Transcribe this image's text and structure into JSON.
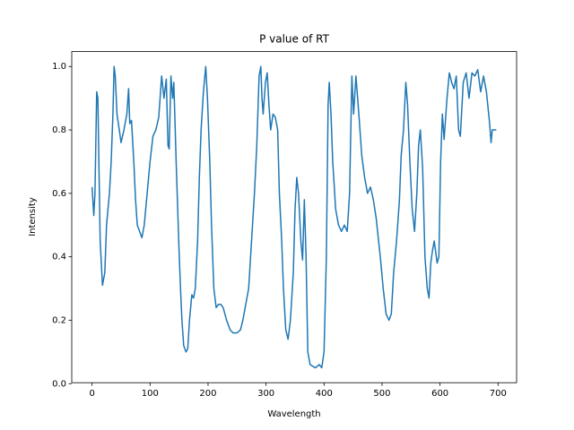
{
  "chart_data": {
    "type": "line",
    "title": "P value of RT",
    "x_label": "Wavelength",
    "y_label": "Intensity",
    "series": [
      {
        "color": "#1f77b4",
        "x": [
          0,
          3,
          5,
          8,
          10,
          14,
          18,
          22,
          25,
          30,
          33,
          36,
          38,
          40,
          43,
          47,
          50,
          55,
          60,
          63,
          65,
          68,
          72,
          75,
          78,
          82,
          86,
          90,
          95,
          100,
          105,
          110,
          115,
          120,
          124,
          128,
          131,
          133,
          136,
          139,
          141,
          145,
          150,
          153,
          155,
          158,
          162,
          165,
          168,
          172,
          175,
          178,
          182,
          185,
          188,
          192,
          196,
          199,
          203,
          206,
          210,
          214,
          218,
          222,
          226,
          232,
          238,
          243,
          250,
          256,
          260,
          265,
          270,
          275,
          280,
          284,
          288,
          291,
          293,
          295,
          299,
          302,
          305,
          308,
          312,
          316,
          320,
          323,
          327,
          330,
          334,
          338,
          342,
          347,
          350,
          353,
          356,
          360,
          363,
          366,
          369,
          372,
          376,
          385,
          392,
          396,
          400,
          404,
          407,
          409,
          412,
          415,
          420,
          425,
          430,
          435,
          440,
          444,
          448,
          451,
          455,
          460,
          465,
          470,
          475,
          480,
          485,
          490,
          497,
          502,
          507,
          512,
          516,
          520,
          525,
          530,
          533,
          537,
          541,
          544,
          548,
          552,
          556,
          560,
          563,
          566,
          570,
          574,
          578,
          581,
          584,
          587,
          590,
          595,
          598,
          601,
          604,
          607,
          612,
          616,
          620,
          624,
          628,
          632,
          635,
          640,
          645,
          650,
          655,
          660,
          665,
          670,
          675,
          680,
          685,
          688,
          690,
          697
        ],
        "values": [
          0.62,
          0.53,
          0.6,
          0.92,
          0.9,
          0.45,
          0.31,
          0.35,
          0.5,
          0.6,
          0.7,
          0.85,
          1.0,
          0.97,
          0.85,
          0.8,
          0.76,
          0.8,
          0.85,
          0.93,
          0.82,
          0.83,
          0.7,
          0.58,
          0.5,
          0.48,
          0.46,
          0.5,
          0.6,
          0.7,
          0.78,
          0.8,
          0.84,
          0.97,
          0.9,
          0.96,
          0.75,
          0.74,
          0.97,
          0.9,
          0.95,
          0.7,
          0.42,
          0.28,
          0.2,
          0.12,
          0.1,
          0.11,
          0.2,
          0.28,
          0.27,
          0.3,
          0.45,
          0.65,
          0.8,
          0.92,
          1.0,
          0.9,
          0.7,
          0.5,
          0.3,
          0.24,
          0.25,
          0.25,
          0.24,
          0.2,
          0.17,
          0.16,
          0.16,
          0.17,
          0.2,
          0.25,
          0.3,
          0.45,
          0.6,
          0.75,
          0.97,
          1.0,
          0.9,
          0.85,
          0.95,
          0.98,
          0.88,
          0.8,
          0.85,
          0.84,
          0.8,
          0.6,
          0.45,
          0.3,
          0.17,
          0.14,
          0.2,
          0.35,
          0.55,
          0.65,
          0.6,
          0.45,
          0.39,
          0.58,
          0.4,
          0.1,
          0.06,
          0.05,
          0.06,
          0.05,
          0.1,
          0.4,
          0.88,
          0.95,
          0.85,
          0.7,
          0.55,
          0.5,
          0.48,
          0.5,
          0.48,
          0.6,
          0.97,
          0.85,
          0.97,
          0.85,
          0.72,
          0.65,
          0.6,
          0.62,
          0.58,
          0.52,
          0.4,
          0.3,
          0.22,
          0.2,
          0.22,
          0.35,
          0.45,
          0.58,
          0.72,
          0.8,
          0.95,
          0.88,
          0.7,
          0.55,
          0.48,
          0.6,
          0.75,
          0.8,
          0.68,
          0.4,
          0.3,
          0.27,
          0.38,
          0.42,
          0.45,
          0.38,
          0.4,
          0.7,
          0.85,
          0.77,
          0.9,
          0.98,
          0.95,
          0.93,
          0.97,
          0.8,
          0.78,
          0.95,
          0.98,
          0.9,
          0.98,
          0.97,
          0.99,
          0.92,
          0.97,
          0.92,
          0.83,
          0.76,
          0.8,
          0.8
        ]
      }
    ],
    "xlim": [
      -35,
      732
    ],
    "ylim": [
      0.003,
      1.047
    ],
    "xticks": [
      0,
      100,
      200,
      300,
      400,
      500,
      600,
      700
    ],
    "yticks": [
      {
        "value": 0,
        "label": "0.0"
      },
      0.2,
      0.4,
      0.6,
      0.8,
      {
        "value": 1,
        "label": "1.0"
      }
    ]
  }
}
